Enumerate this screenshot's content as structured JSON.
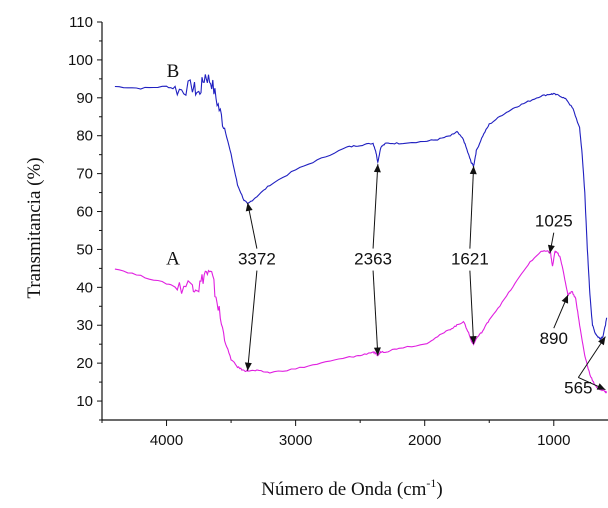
{
  "chart_data": {
    "type": "line",
    "title": "",
    "xlabel": "Número de Onda (cm",
    "xlabel_sup": "-1",
    "xlabel_end": ")",
    "ylabel": "Transmitancia (%)",
    "xlim": [
      4500,
      580
    ],
    "ylim": [
      5,
      110
    ],
    "x_ticks": [
      4000,
      3000,
      2000,
      1000
    ],
    "x_tick_labels": [
      "4000",
      "3000",
      "2000",
      "1000"
    ],
    "y_ticks": [
      10,
      20,
      30,
      40,
      50,
      60,
      70,
      80,
      90,
      100,
      110
    ],
    "y_tick_labels": [
      "10",
      "20",
      "30",
      "40",
      "50",
      "60",
      "70",
      "80",
      "90",
      "100",
      "110"
    ],
    "grid": false,
    "series": [
      {
        "name": "B",
        "color": "#2020c0",
        "x": [
          4400,
          4200,
          4000,
          3900,
          3800,
          3750,
          3700,
          3650,
          3600,
          3550,
          3500,
          3450,
          3400,
          3372,
          3300,
          3200,
          3000,
          2800,
          2600,
          2500,
          2400,
          2380,
          2363,
          2340,
          2300,
          2200,
          2000,
          1900,
          1800,
          1750,
          1700,
          1660,
          1640,
          1621,
          1600,
          1550,
          1500,
          1400,
          1300,
          1200,
          1100,
          1025,
          1000,
          950,
          900,
          850,
          800,
          780,
          760,
          740,
          720,
          700,
          680,
          660,
          640,
          620,
          600,
          590
        ],
        "y": [
          93,
          92.5,
          93,
          92,
          93,
          91,
          96,
          94,
          88,
          82,
          75,
          67,
          63,
          62,
          64,
          67,
          71,
          74,
          77,
          77.5,
          78,
          76,
          73,
          77,
          78,
          78,
          78.5,
          79,
          80,
          81,
          79,
          75,
          73,
          72,
          76,
          80,
          83,
          85.5,
          87.5,
          89,
          90.5,
          91,
          91,
          90.5,
          89.5,
          87,
          82,
          75,
          65,
          50,
          38,
          30,
          28,
          27,
          26.5,
          27,
          30,
          32
        ]
      },
      {
        "name": "A",
        "color": "#e020e0",
        "x": [
          4400,
          4200,
          4000,
          3900,
          3800,
          3750,
          3700,
          3650,
          3600,
          3550,
          3500,
          3450,
          3400,
          3372,
          3300,
          3200,
          3000,
          2800,
          2600,
          2500,
          2400,
          2380,
          2363,
          2340,
          2300,
          2200,
          2000,
          1900,
          1800,
          1750,
          1700,
          1660,
          1640,
          1621,
          1600,
          1550,
          1500,
          1400,
          1300,
          1200,
          1100,
          1050,
          1025,
          1010,
          990,
          970,
          950,
          920,
          890,
          860,
          830,
          800,
          760,
          720,
          680,
          640,
          600,
          590
        ],
        "y": [
          45,
          43,
          41,
          40,
          41,
          40,
          44,
          43,
          35,
          26,
          21,
          19,
          18,
          18,
          18,
          17.5,
          18.5,
          20,
          21.5,
          22,
          23,
          22.5,
          22,
          23,
          23,
          24,
          25,
          27,
          29,
          30,
          31,
          28,
          26,
          25,
          26.5,
          28.5,
          31.5,
          36,
          41,
          46,
          49.5,
          49.5,
          49,
          45.5,
          49.5,
          49,
          48,
          43,
          38,
          39,
          37,
          30,
          22,
          17,
          14,
          13,
          12.5,
          12.5
        ]
      }
    ],
    "series_labels": [
      {
        "text": "B",
        "x": 3950,
        "y": 95.5
      },
      {
        "text": "A",
        "x": 3950,
        "y": 46
      }
    ],
    "annotations": [
      {
        "text": "3372",
        "label_x": 3300,
        "label_y": 46,
        "arrows": [
          [
            3372,
            62.3
          ],
          [
            3372,
            18
          ]
        ]
      },
      {
        "text": "2363",
        "label_x": 2400,
        "label_y": 46,
        "arrows": [
          [
            2363,
            72.5
          ],
          [
            2363,
            22
          ]
        ]
      },
      {
        "text": "1621",
        "label_x": 1650,
        "label_y": 46,
        "arrows": [
          [
            1621,
            72
          ],
          [
            1621,
            25
          ]
        ]
      },
      {
        "text": "1025",
        "label_x": 1000,
        "label_y": 56,
        "arrows": [
          [
            1030,
            49
          ]
        ]
      },
      {
        "text": "890",
        "label_x": 1000,
        "label_y": 25,
        "arrows": [
          [
            890,
            38
          ]
        ]
      },
      {
        "text": "565",
        "label_x": 810,
        "label_y": 12,
        "arrows": [
          [
            600,
            27
          ],
          [
            600,
            13
          ]
        ]
      }
    ]
  }
}
